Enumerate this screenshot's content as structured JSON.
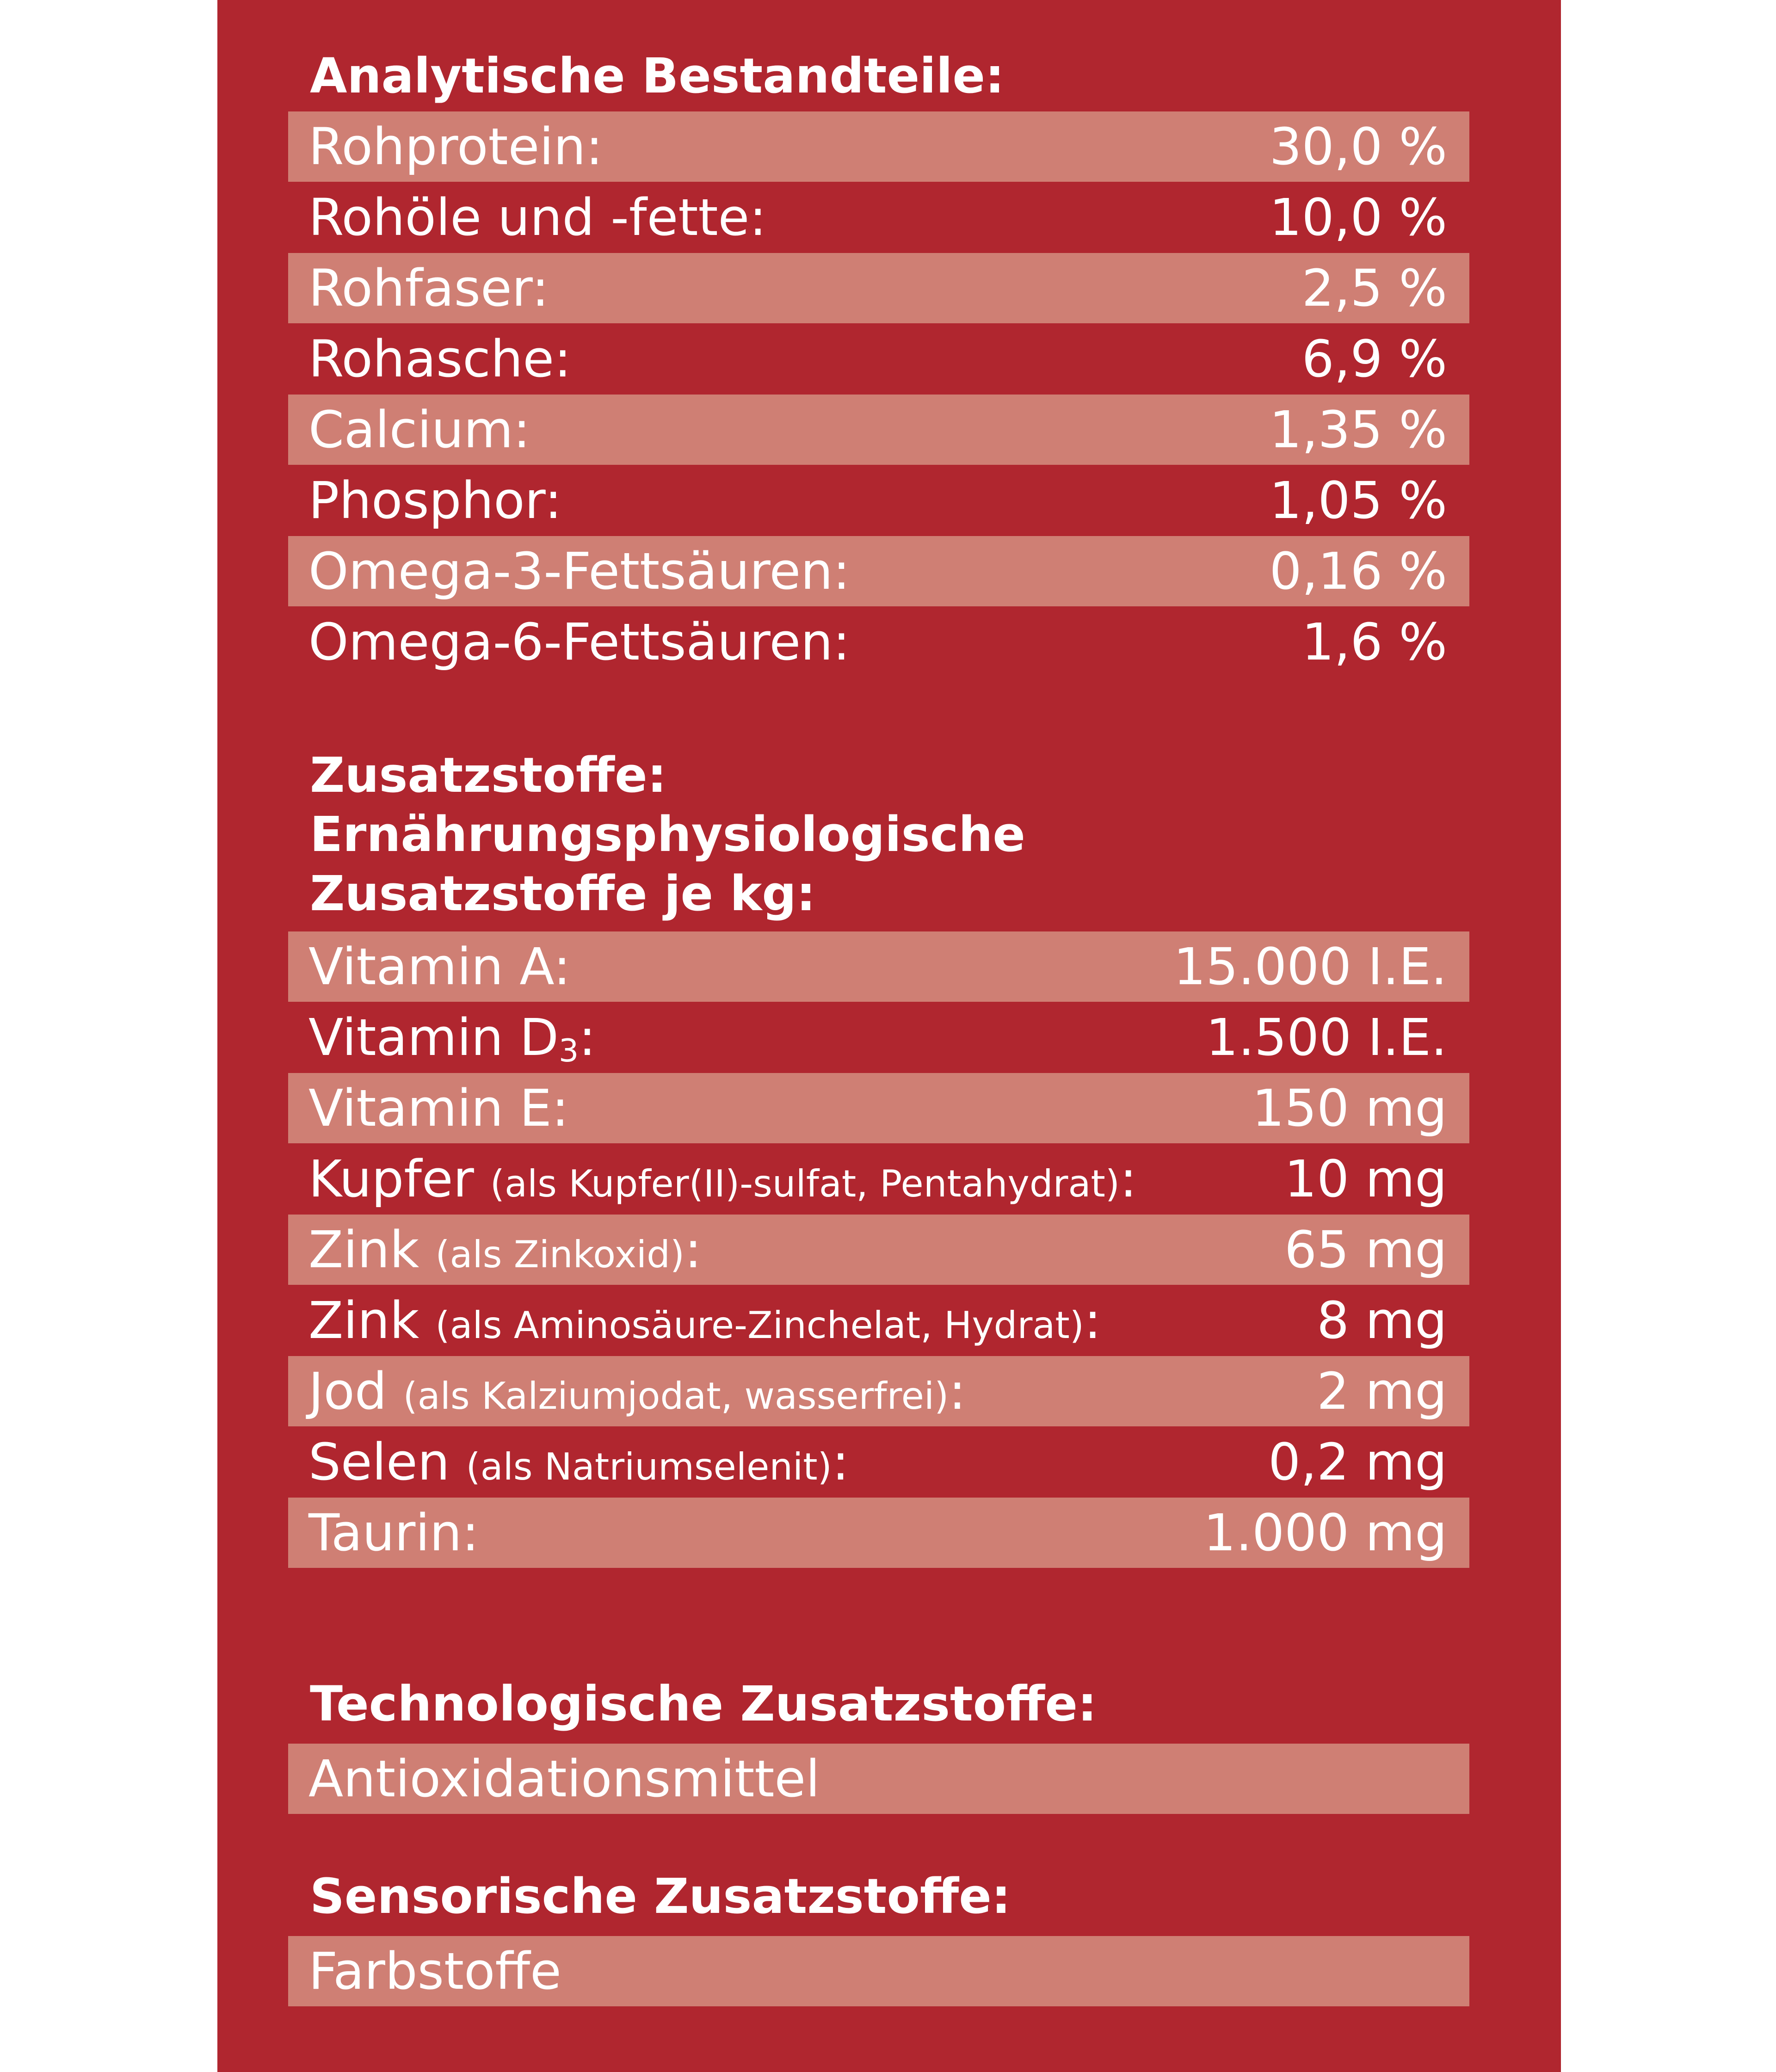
{
  "colors": {
    "panel": "#b0262f",
    "row_shade": "#cf7f74",
    "text": "#ffffff"
  },
  "analytische": {
    "heading": "Analytische Bestandteile:",
    "rows": [
      {
        "label": "Rohprotein:",
        "value": "30,0 %"
      },
      {
        "label": "Rohöle und -fette:",
        "value": "10,0 %"
      },
      {
        "label": "Rohfaser:",
        "value": "2,5 %"
      },
      {
        "label": "Rohasche:",
        "value": "6,9 %"
      },
      {
        "label": "Calcium:",
        "value": "1,35 %"
      },
      {
        "label": "Phosphor:",
        "value": "1,05 %"
      },
      {
        "label": "Omega-3-Fettsäuren:",
        "value": "0,16 %"
      },
      {
        "label": "Omega-6-Fettsäuren:",
        "value": "1,6 %"
      }
    ]
  },
  "zusatzstoffe": {
    "heading_line1": "Zusatzstoffe:",
    "heading_line2": "Ernährungsphysiologische",
    "heading_line3": "Zusatzstoffe je kg:",
    "rows": [
      {
        "label": "Vitamin A:",
        "value": "15.000 I.E."
      },
      {
        "label": "Vitamin D",
        "sub": "3",
        "suffix": ":",
        "value": "1.500 I.E."
      },
      {
        "label": "Vitamin E:",
        "value": "150 mg"
      },
      {
        "label": "Kupfer",
        "note": "(als Kupfer(II)-sulfat, Pentahydrat)",
        "suffix": ":",
        "value": "10 mg"
      },
      {
        "label": "Zink",
        "note": "(als Zinkoxid)",
        "suffix": ":",
        "value": "65 mg"
      },
      {
        "label": "Zink",
        "note": "(als Aminosäure-Zinchelat, Hydrat)",
        "suffix": ":",
        "value": "8 mg"
      },
      {
        "label": "Jod",
        "note": "(als Kalziumjodat, wasserfrei)",
        "suffix": ":",
        "value": "2 mg"
      },
      {
        "label": "Selen",
        "note": "(als Natriumselenit)",
        "suffix": ":",
        "value": "0,2 mg"
      },
      {
        "label": "Taurin:",
        "value": "1.000 mg"
      }
    ]
  },
  "technologische": {
    "heading": "Technologische Zusatzstoffe:",
    "item": "Antioxidationsmittel"
  },
  "sensorische": {
    "heading": "Sensorische Zusatzstoffe:",
    "item": "Farbstoffe"
  }
}
